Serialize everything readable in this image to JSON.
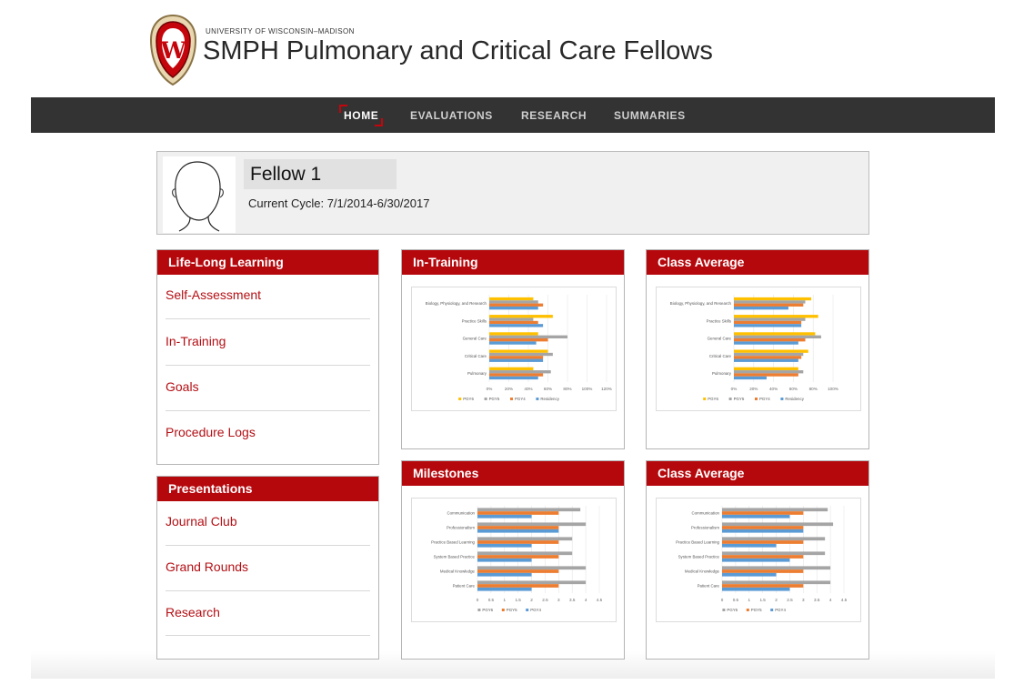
{
  "header": {
    "university": "UNIVERSITY OF WISCONSIN–MADISON",
    "title": "SMPH Pulmonary and Critical Care Fellows",
    "crest_letter": "W",
    "brand_color": "#c5050c"
  },
  "nav": {
    "items": [
      "HOME",
      "EVALUATIONS",
      "RESEARCH",
      "SUMMARIES"
    ],
    "active": "HOME"
  },
  "profile": {
    "name": "Fellow 1",
    "cycle": "Current Cycle: 7/1/2014-6/30/2017"
  },
  "sidebar": {
    "life_long_learning": {
      "title": "Life-Long Learning",
      "links": [
        "Self-Assessment",
        "In-Training",
        "Goals",
        "Procedure Logs"
      ]
    },
    "presentations": {
      "title": "Presentations",
      "links": [
        "Journal Club",
        "Grand Rounds",
        "Research"
      ]
    }
  },
  "panels": {
    "in_training_title": "In-Training",
    "class_avg_top_title": "Class Average",
    "milestones_title": "Milestones",
    "class_avg_bottom_title": "Class Average"
  },
  "chart_data": [
    {
      "type": "bar",
      "orientation": "horizontal",
      "categories": [
        "Biology, Physiology, and Research",
        "Practice Skills",
        "General Care",
        "Critical Care",
        "Pulmonary"
      ],
      "series": [
        {
          "name": "PGY6",
          "color": "#ffc000",
          "values": [
            45,
            65,
            50,
            60,
            45
          ]
        },
        {
          "name": "PGY5",
          "color": "#a5a5a5",
          "values": [
            50,
            45,
            80,
            65,
            63
          ]
        },
        {
          "name": "PGY4",
          "color": "#ed7d31",
          "values": [
            55,
            50,
            60,
            55,
            55
          ]
        },
        {
          "name": "Residency",
          "color": "#5b9bd5",
          "values": [
            50,
            55,
            48,
            55,
            50
          ]
        }
      ],
      "xlim": [
        0,
        120
      ],
      "xticks": [
        "0%",
        "20%",
        "40%",
        "60%",
        "80%",
        "100%",
        "120%"
      ]
    },
    {
      "type": "bar",
      "orientation": "horizontal",
      "categories": [
        "Biology, Physiology, and Research",
        "Practice Skills",
        "General Care",
        "Critical Care",
        "Pulmonary"
      ],
      "series": [
        {
          "name": "PGY6",
          "color": "#ffc000",
          "values": [
            78,
            85,
            82,
            75,
            65
          ]
        },
        {
          "name": "PGY5",
          "color": "#a5a5a5",
          "values": [
            72,
            72,
            88,
            70,
            70
          ]
        },
        {
          "name": "PGY4",
          "color": "#ed7d31",
          "values": [
            70,
            68,
            72,
            68,
            65
          ]
        },
        {
          "name": "Residency",
          "color": "#5b9bd5",
          "values": [
            55,
            68,
            65,
            65,
            33
          ]
        }
      ],
      "xlim": [
        0,
        100
      ],
      "xticks": [
        "0%",
        "20%",
        "40%",
        "60%",
        "80%",
        "100%"
      ]
    },
    {
      "type": "bar",
      "orientation": "horizontal",
      "categories": [
        "Communication",
        "Professionalism",
        "Practice Based Learning",
        "System Based Practice",
        "Medical Knowledge",
        "Patient Care"
      ],
      "series": [
        {
          "name": "PGY6",
          "color": "#a5a5a5",
          "values": [
            3.8,
            4.0,
            3.5,
            3.5,
            4.0,
            4.0
          ]
        },
        {
          "name": "PGY5",
          "color": "#ed7d31",
          "values": [
            3.0,
            3.0,
            3.0,
            3.0,
            3.0,
            3.0
          ]
        },
        {
          "name": "PGY4",
          "color": "#5b9bd5",
          "values": [
            2.0,
            3.0,
            2.0,
            2.0,
            2.0,
            2.0
          ]
        }
      ],
      "xlim": [
        0,
        4.5
      ],
      "xticks": [
        "0",
        "0.5",
        "1",
        "1.5",
        "2",
        "2.5",
        "3",
        "3.5",
        "4",
        "4.5"
      ]
    },
    {
      "type": "bar",
      "orientation": "horizontal",
      "categories": [
        "Communication",
        "Professionalism",
        "Practice Based Learning",
        "System Based Practice",
        "Medical Knowledge",
        "Patient Care"
      ],
      "series": [
        {
          "name": "PGY6",
          "color": "#a5a5a5",
          "values": [
            3.9,
            4.1,
            3.8,
            3.8,
            4.0,
            4.0
          ]
        },
        {
          "name": "PGY5",
          "color": "#ed7d31",
          "values": [
            3.0,
            3.0,
            3.0,
            3.0,
            3.0,
            3.0
          ]
        },
        {
          "name": "PGY4",
          "color": "#5b9bd5",
          "values": [
            2.5,
            3.0,
            2.0,
            2.5,
            2.0,
            2.5
          ]
        }
      ],
      "xlim": [
        0,
        4.5
      ],
      "xticks": [
        "0",
        "0.5",
        "1",
        "1.5",
        "2",
        "2.5",
        "3",
        "3.5",
        "4",
        "4.5"
      ]
    }
  ]
}
